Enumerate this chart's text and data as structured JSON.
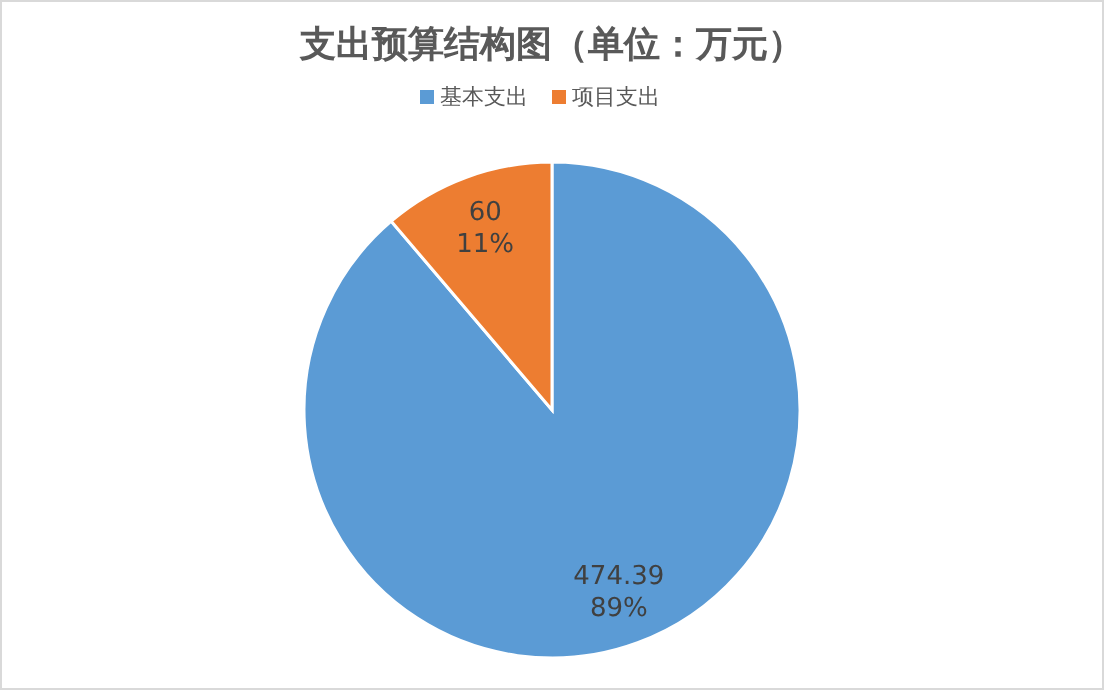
{
  "chart_data": {
    "type": "pie",
    "title": "支出预算结构图（单位：万元）",
    "categories": [
      "基本支出",
      "项目支出"
    ],
    "values": [
      474.39,
      60
    ],
    "colors": [
      "#5b9bd5",
      "#ed7d31"
    ],
    "value_labels": [
      "474.39\n89%",
      "60\n11%"
    ],
    "legend": "top"
  }
}
